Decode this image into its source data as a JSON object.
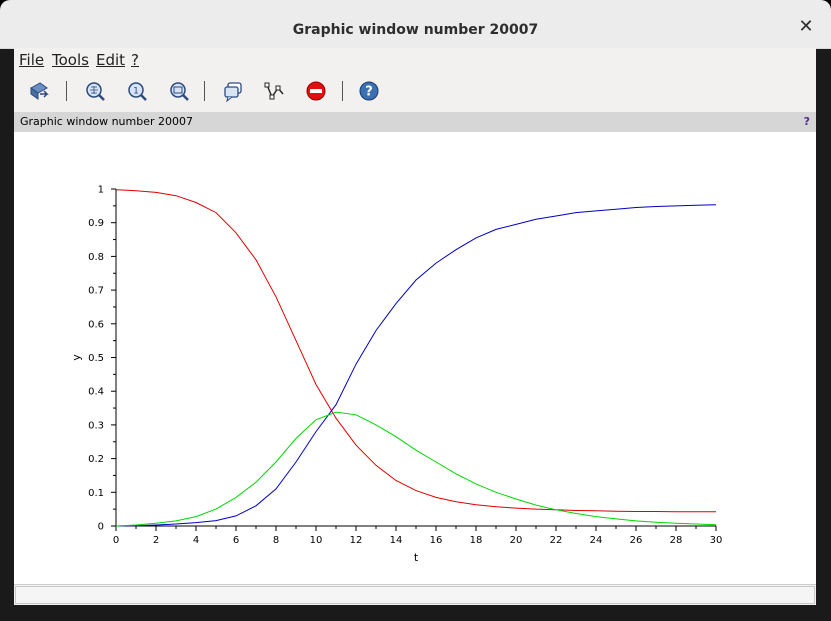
{
  "window": {
    "title": "Graphic window number 20007",
    "close_glyph": "✕"
  },
  "menubar": {
    "items": [
      "File",
      "Tools",
      "Edit",
      "?"
    ]
  },
  "toolbar": {
    "buttons": [
      "rotate-icon",
      "zoom-in-icon",
      "zoom-original-icon",
      "zoom-out-icon",
      "datatip-icon",
      "datatip-manager-icon",
      "stop-icon",
      "help-icon"
    ]
  },
  "infobar": {
    "text": "Graphic window number 20007",
    "help": "?"
  },
  "colors": {
    "red": "#e00000",
    "blue": "#0000c8",
    "green": "#00d800"
  },
  "chart_data": {
    "type": "line",
    "xlabel": "t",
    "ylabel": "y",
    "xlim": [
      0,
      30
    ],
    "ylim": [
      0,
      1
    ],
    "xticks": [
      0,
      2,
      4,
      6,
      8,
      10,
      12,
      14,
      16,
      18,
      20,
      22,
      24,
      26,
      28,
      30
    ],
    "yticks": [
      "0",
      "0.1",
      "0.2",
      "0.3",
      "0.4",
      "0.5",
      "0.6",
      "0.7",
      "0.8",
      "0.9",
      "1"
    ],
    "x": [
      0,
      1,
      2,
      3,
      4,
      5,
      6,
      7,
      8,
      9,
      10,
      11,
      12,
      13,
      14,
      15,
      16,
      17,
      18,
      19,
      20,
      21,
      22,
      23,
      24,
      25,
      26,
      27,
      28,
      29,
      30
    ],
    "series": [
      {
        "color": "red",
        "values": [
          0.998,
          0.995,
          0.99,
          0.98,
          0.96,
          0.93,
          0.87,
          0.79,
          0.68,
          0.55,
          0.42,
          0.32,
          0.24,
          0.18,
          0.135,
          0.105,
          0.085,
          0.072,
          0.063,
          0.057,
          0.053,
          0.05,
          0.048,
          0.046,
          0.045,
          0.044,
          0.043,
          0.043,
          0.042,
          0.042,
          0.042
        ]
      },
      {
        "color": "blue",
        "values": [
          0.0,
          0.001,
          0.003,
          0.006,
          0.01,
          0.016,
          0.03,
          0.06,
          0.11,
          0.19,
          0.28,
          0.36,
          0.48,
          0.58,
          0.66,
          0.73,
          0.78,
          0.82,
          0.855,
          0.88,
          0.895,
          0.91,
          0.92,
          0.93,
          0.935,
          0.94,
          0.945,
          0.948,
          0.95,
          0.952,
          0.953
        ]
      },
      {
        "color": "green",
        "values": [
          0.0,
          0.003,
          0.008,
          0.015,
          0.028,
          0.05,
          0.085,
          0.13,
          0.19,
          0.26,
          0.315,
          0.338,
          0.33,
          0.3,
          0.265,
          0.225,
          0.19,
          0.155,
          0.125,
          0.1,
          0.08,
          0.062,
          0.048,
          0.037,
          0.028,
          0.021,
          0.015,
          0.011,
          0.008,
          0.006,
          0.004
        ]
      }
    ]
  }
}
